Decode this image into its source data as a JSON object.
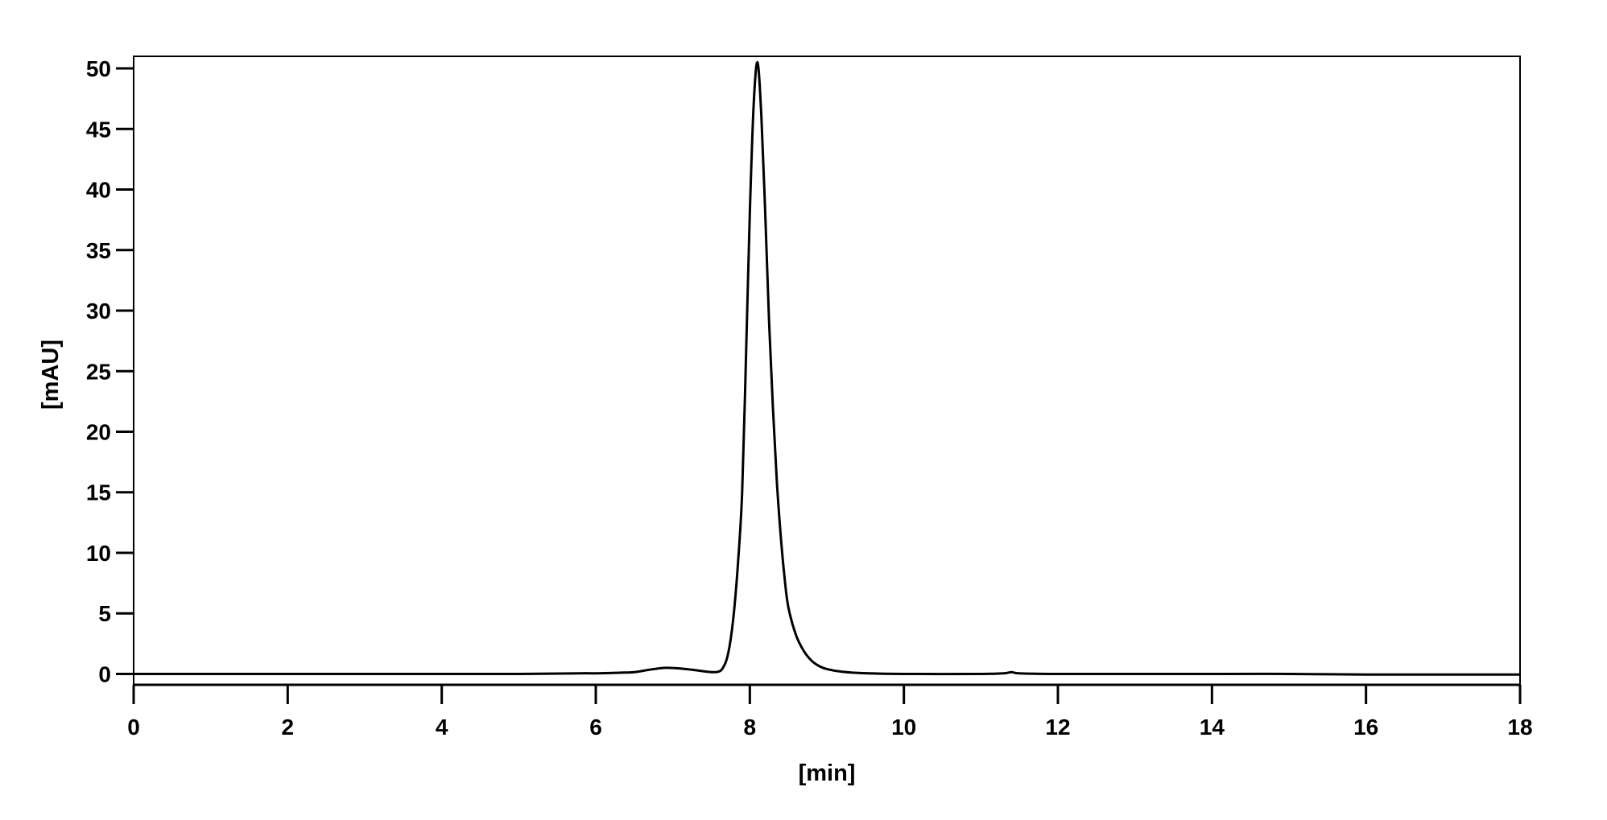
{
  "chart_data": {
    "type": "line",
    "title": "",
    "xlabel": "[min]",
    "ylabel": "[mAU]",
    "xlim": [
      0,
      18
    ],
    "ylim": [
      -0.9,
      51
    ],
    "xticks": [
      0,
      2,
      4,
      6,
      8,
      10,
      12,
      14,
      16,
      18
    ],
    "yticks": [
      0,
      5,
      10,
      15,
      20,
      25,
      30,
      35,
      40,
      45,
      50
    ],
    "grid": false,
    "line_color": "#000000",
    "series": [
      {
        "x": [
          0,
          1,
          2,
          3,
          4,
          5,
          5.8,
          6.0,
          6.3,
          6.5,
          6.7,
          6.9,
          7.1,
          7.3,
          7.5,
          7.6,
          7.65,
          7.7,
          7.75,
          7.8,
          7.85,
          7.9,
          7.95,
          8.0,
          8.05,
          8.1,
          8.15,
          8.2,
          8.25,
          8.3,
          8.35,
          8.4,
          8.45,
          8.5,
          8.6,
          8.7,
          8.8,
          8.9,
          9.0,
          9.2,
          9.5,
          10,
          11,
          11.3,
          11.4,
          11.5,
          12,
          14,
          15,
          16,
          18
        ],
        "y": [
          0,
          0,
          0,
          0,
          0,
          0,
          0.05,
          0.05,
          0.1,
          0.15,
          0.35,
          0.5,
          0.45,
          0.3,
          0.15,
          0.2,
          0.5,
          1.2,
          2.8,
          5.5,
          9.5,
          15,
          26,
          38,
          47,
          50.5,
          46,
          38,
          29,
          22,
          16,
          11.5,
          8,
          5.5,
          3.2,
          1.9,
          1.1,
          0.65,
          0.4,
          0.18,
          0.06,
          0,
          0,
          0.05,
          0.15,
          0.05,
          0,
          0,
          0,
          -0.05,
          -0.05
        ]
      }
    ]
  }
}
